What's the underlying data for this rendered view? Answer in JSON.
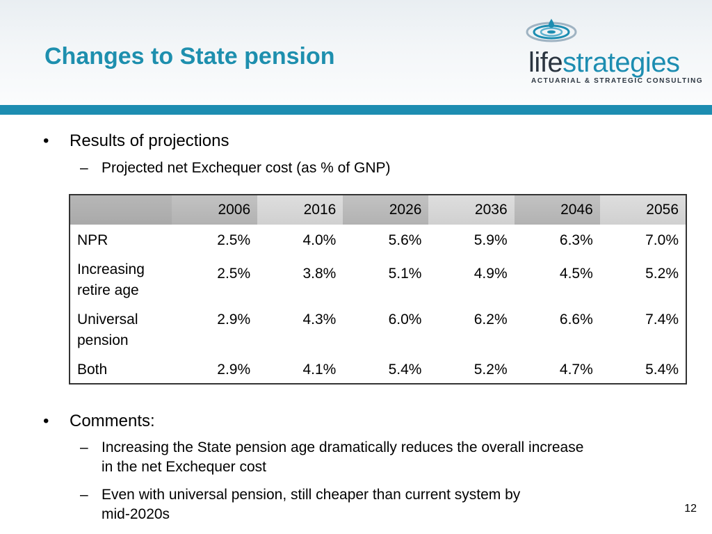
{
  "slide": {
    "title": "Changes to State pension",
    "page_number": "12"
  },
  "logo": {
    "word_life": "life",
    "word_strategies": "strategies",
    "tagline": "ACTUARIAL & STRATEGIC CONSULTING",
    "mark_icon": "water-ripple-icon",
    "colors": {
      "dark": "#2b3540",
      "accent": "#1d8db1"
    }
  },
  "colors": {
    "title": "#1e8fae",
    "header_bar": "#1d8db1"
  },
  "section1": {
    "bullet": "•",
    "heading": "Results of projections",
    "sub_dash": "–",
    "sub": "Projected net Exchequer cost (as % of GNP)"
  },
  "table": {
    "years": [
      "2006",
      "2016",
      "2026",
      "2036",
      "2046",
      "2056"
    ],
    "rows": [
      {
        "label": "NPR",
        "values": [
          "2.5%",
          "4.0%",
          "5.6%",
          "5.9%",
          "6.3%",
          "7.0%"
        ]
      },
      {
        "label_line1": "Increasing",
        "label_line2": "retire age",
        "values": [
          "2.5%",
          "3.8%",
          "5.1%",
          "4.9%",
          "4.5%",
          "5.2%"
        ]
      },
      {
        "label_line1": "Universal",
        "label_line2": "pension",
        "values": [
          "2.9%",
          "4.3%",
          "6.0%",
          "6.2%",
          "6.6%",
          "7.4%"
        ]
      },
      {
        "label": "Both",
        "values": [
          "2.9%",
          "4.1%",
          "5.4%",
          "5.2%",
          "4.7%",
          "5.4%"
        ]
      }
    ]
  },
  "section2": {
    "bullet": "•",
    "heading": "Comments:",
    "sub_dash": "–",
    "comment1_line1": "Increasing the State pension age dramatically reduces the overall increase",
    "comment1_line2": "in the net Exchequer cost",
    "comment2_line1": "Even with universal pension, still cheaper than current system by",
    "comment2_line2": "mid-2020s"
  }
}
